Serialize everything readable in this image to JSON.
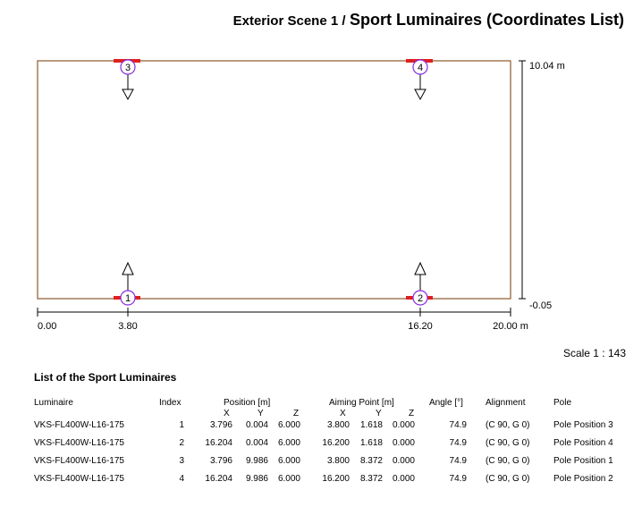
{
  "header": {
    "scene": "Exterior Scene 1 /",
    "title": "Sport Luminaires (Coordinates List)"
  },
  "plan": {
    "dimensions": {
      "y_top": "10.04 m",
      "y_bottom": "-0.05",
      "x_left": "0.00",
      "x_mid1": "3.80",
      "x_mid2": "16.20",
      "x_right": "20.00 m"
    },
    "luminaire_markers": [
      "1",
      "2",
      "3",
      "4"
    ],
    "colors": {
      "field_outline": "#8B5A2B",
      "fixture": "#E02020",
      "marker": "#8A2BE2"
    }
  },
  "scale": "Scale 1 : 143",
  "list": {
    "title": "List of the Sport Luminaires",
    "headers": {
      "luminaire": "Luminaire",
      "index": "Index",
      "position": "Position [m]",
      "aiming": "Aiming Point [m]",
      "angle": "Angle [°]",
      "alignment": "Alignment",
      "pole": "Pole",
      "x": "X",
      "y": "Y",
      "z": "Z"
    },
    "rows": [
      {
        "luminaire": "VKS-FL400W-L16-175",
        "index": "1",
        "px": "3.796",
        "py": "0.004",
        "pz": "6.000",
        "ax": "3.800",
        "ay": "1.618",
        "az": "0.000",
        "angle": "74.9",
        "alignment": "(C 90, G 0)",
        "pole": "Pole Position 3"
      },
      {
        "luminaire": "VKS-FL400W-L16-175",
        "index": "2",
        "px": "16.204",
        "py": "0.004",
        "pz": "6.000",
        "ax": "16.200",
        "ay": "1.618",
        "az": "0.000",
        "angle": "74.9",
        "alignment": "(C 90, G 0)",
        "pole": "Pole Position 4"
      },
      {
        "luminaire": "VKS-FL400W-L16-175",
        "index": "3",
        "px": "3.796",
        "py": "9.986",
        "pz": "6.000",
        "ax": "3.800",
        "ay": "8.372",
        "az": "0.000",
        "angle": "74.9",
        "alignment": "(C 90, G 0)",
        "pole": "Pole Position 1"
      },
      {
        "luminaire": "VKS-FL400W-L16-175",
        "index": "4",
        "px": "16.204",
        "py": "9.986",
        "pz": "6.000",
        "ax": "16.200",
        "ay": "8.372",
        "az": "0.000",
        "angle": "74.9",
        "alignment": "(C 90, G 0)",
        "pole": "Pole Position 2"
      }
    ]
  }
}
